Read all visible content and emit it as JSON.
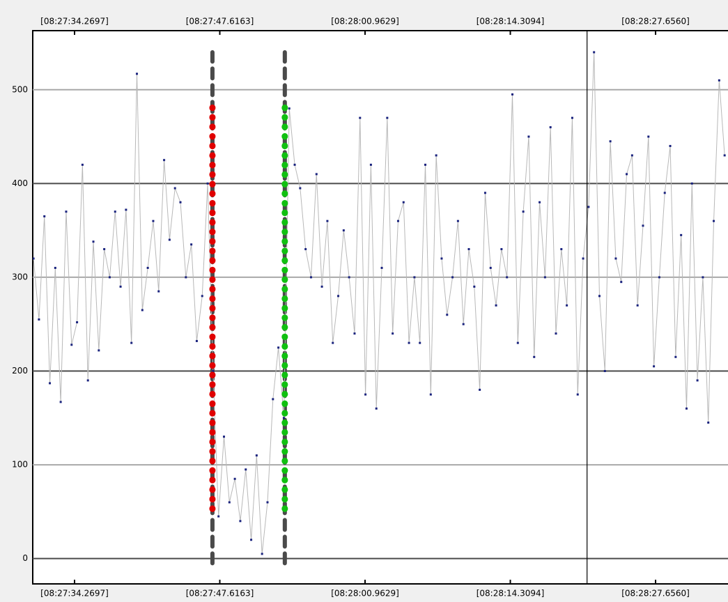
{
  "chart_data": {
    "type": "line",
    "xlim": [
      30450.43,
      30514.31
    ],
    "ylim": [
      -27,
      563
    ],
    "xticks": [
      {
        "value": 30454.2697,
        "label": "[08:27:34.2697]"
      },
      {
        "value": 30467.6163,
        "label": "[08:27:47.6163]"
      },
      {
        "value": 30480.9629,
        "label": "[08:28:00.9629]"
      },
      {
        "value": 30494.3094,
        "label": "[08:28:14.3094]"
      },
      {
        "value": 30507.656,
        "label": "[08:28:27.6560]"
      }
    ],
    "yticks": [
      0,
      100,
      200,
      300,
      400,
      500
    ],
    "grid": true,
    "series": [
      {
        "color": "#b8b8b8",
        "marker_color": "#1a237e",
        "x": [
          30450.5,
          30451,
          30451.5,
          30452,
          30452.5,
          30453,
          30453.5,
          30454,
          30454.5,
          30455,
          30455.5,
          30456,
          30456.5,
          30457,
          30457.5,
          30458,
          30458.5,
          30459,
          30459.5,
          30460,
          30460.5,
          30461,
          30461.5,
          30462,
          30462.5,
          30463,
          30463.5,
          30464,
          30464.5,
          30465,
          30465.5,
          30466,
          30466.5,
          30467,
          30467.5,
          30468,
          30468.5,
          30469,
          30469.5,
          30470,
          30470.5,
          30471,
          30471.5,
          30472,
          30472.5,
          30473,
          30473.5,
          30474,
          30474.5,
          30475,
          30475.5,
          30476,
          30476.5,
          30477,
          30477.5,
          30478,
          30478.5,
          30479,
          30479.5,
          30480,
          30480.5,
          30481,
          30481.5,
          30482,
          30482.5,
          30483,
          30483.5,
          30484,
          30484.5,
          30485,
          30485.5,
          30486,
          30486.5,
          30487,
          30487.5,
          30488,
          30488.5,
          30489,
          30489.5,
          30490,
          30490.5,
          30491,
          30491.5,
          30492,
          30492.5,
          30493,
          30493.5,
          30494,
          30494.5,
          30495,
          30495.5,
          30496,
          30496.5,
          30497,
          30497.5,
          30498,
          30498.5,
          30499,
          30499.5,
          30500,
          30500.5,
          30501,
          30501.5,
          30502,
          30502.5,
          30503,
          30503.5,
          30504,
          30504.5,
          30505,
          30505.5,
          30506,
          30506.5,
          30507,
          30507.5,
          30508,
          30508.5,
          30509,
          30509.5,
          30510,
          30510.5,
          30511,
          30511.5,
          30512,
          30512.5,
          30513,
          30513.5,
          30514
        ],
        "values": [
          320,
          255,
          365,
          187,
          310,
          167,
          370,
          228,
          252,
          420,
          190,
          338,
          222,
          330,
          300,
          370,
          290,
          372,
          230,
          517,
          265,
          310,
          360,
          285,
          425,
          340,
          395,
          380,
          300,
          335,
          232,
          280,
          400,
          200,
          45,
          130,
          60,
          85,
          40,
          95,
          20,
          110,
          5,
          60,
          170,
          225,
          150,
          480,
          420,
          395,
          330,
          300,
          410,
          290,
          360,
          230,
          280,
          350,
          300,
          240,
          470,
          175,
          420,
          160,
          310,
          470,
          240,
          360,
          380,
          230,
          300,
          230,
          420,
          175,
          430,
          320,
          260,
          300,
          360,
          250,
          330,
          290,
          180,
          390,
          310,
          270,
          330,
          300,
          495,
          230,
          370,
          450,
          215,
          380,
          300,
          460,
          240,
          330,
          270,
          470,
          175,
          320,
          375,
          540,
          280,
          200,
          445,
          320,
          295,
          410,
          430,
          270,
          355,
          450,
          205,
          300,
          390,
          440,
          215,
          345,
          160,
          400,
          190,
          300,
          145,
          360,
          510,
          430
        ]
      }
    ],
    "cursor": {
      "x": 30501.36,
      "color": "#000000"
    },
    "markers": [
      {
        "x": 30466.94,
        "color": "#e00000",
        "from": 53,
        "to": 481,
        "span": [
          -5,
          540
        ]
      },
      {
        "x": 30473.59,
        "color": "#10c010",
        "from": 53,
        "to": 481,
        "span": [
          -5,
          540
        ]
      }
    ]
  }
}
